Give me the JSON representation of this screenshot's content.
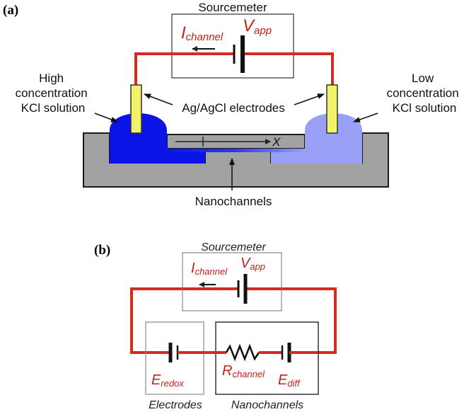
{
  "panel_a": {
    "label": "(a)",
    "sourcemeter_title": "Sourcemeter",
    "i_main": "I",
    "i_sub": "channel",
    "v_main": "V",
    "v_sub": "app",
    "left_solution": [
      "High",
      "concentration",
      "KCl solution"
    ],
    "right_solution": [
      "Low",
      "concentration",
      "KCl solution"
    ],
    "electrodes_label": "Ag/AgCl electrodes",
    "axis_label": "X",
    "nanochannels_label": "Nanochannels"
  },
  "panel_b": {
    "label": "(b)",
    "sourcemeter_title": "Sourcemeter",
    "i_main": "I",
    "i_sub": "channel",
    "v_main": "V",
    "v_sub": "app",
    "e_redox_main": "E",
    "e_redox_sub": "redox",
    "r_main": "R",
    "r_sub": "channel",
    "e_diff_main": "E",
    "e_diff_sub": "diff",
    "electrodes_caption": "Electrodes",
    "nanochannels_caption": "Nanochannels"
  },
  "colors": {
    "wire": "#d42a20",
    "label_red": "#c8201a",
    "high_conc": "#0a14e6",
    "low_conc": "#9aa0f6",
    "electrode": "#f2f26a",
    "chip": "#a2a2a2"
  }
}
